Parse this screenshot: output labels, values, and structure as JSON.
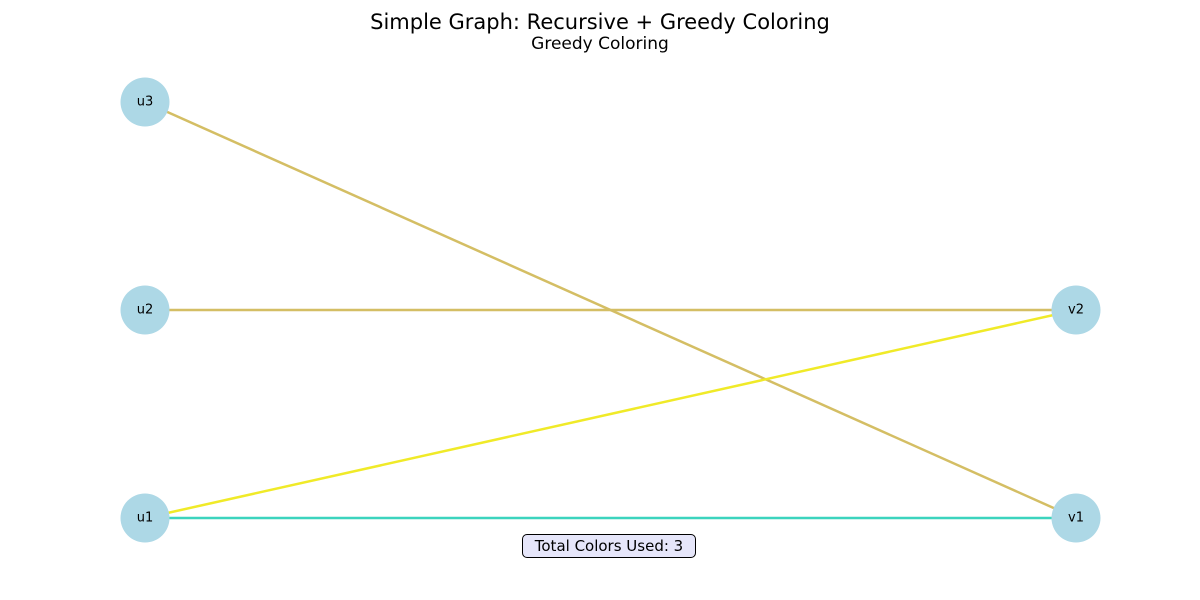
{
  "title": "Simple Graph: Recursive + Greedy Coloring",
  "subtitle": "Greedy Coloring",
  "nodes": [
    {
      "id": "u1"
    },
    {
      "id": "u2"
    },
    {
      "id": "u3"
    },
    {
      "id": "v1"
    },
    {
      "id": "v2"
    }
  ],
  "edges": [
    {
      "source": "u3",
      "target": "v1",
      "color": "#d4be64"
    },
    {
      "source": "u2",
      "target": "v2",
      "color": "#d4be64"
    },
    {
      "source": "u1",
      "target": "v2",
      "color": "#f0ea28"
    },
    {
      "source": "u1",
      "target": "v1",
      "color": "#3cd4be"
    }
  ],
  "node_color": "#add8e6",
  "summary": {
    "label": "Total Colors Used: 3"
  }
}
